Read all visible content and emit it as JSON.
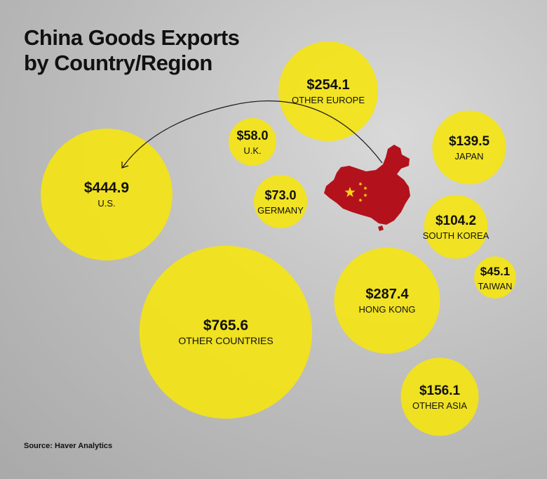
{
  "chart_data": {
    "type": "bubble",
    "title": [
      "China Goods Exports",
      "by Country/Region"
    ],
    "source": "Source: Haver Analytics",
    "bubble_color": "#f5e411",
    "map_color": "#b3121c",
    "star_color": "#f7d417",
    "bubbles": [
      {
        "label": "OTHER COUNTRIES",
        "value_label": "$765.6",
        "value": 765.6
      },
      {
        "label": "U.S.",
        "value_label": "$444.9",
        "value": 444.9
      },
      {
        "label": "HONG KONG",
        "value_label": "$287.4",
        "value": 287.4
      },
      {
        "label": "OTHER EUROPE",
        "value_label": "$254.1",
        "value": 254.1
      },
      {
        "label": "OTHER ASIA",
        "value_label": "$156.1",
        "value": 156.1
      },
      {
        "label": "JAPAN",
        "value_label": "$139.5",
        "value": 139.5
      },
      {
        "label": "SOUTH KOREA",
        "value_label": "$104.2",
        "value": 104.2
      },
      {
        "label": "GERMANY",
        "value_label": "$73.0",
        "value": 73.0
      },
      {
        "label": "U.K.",
        "value_label": "$58.0",
        "value": 58.0
      },
      {
        "label": "TAIWAN",
        "value_label": "$45.1",
        "value": 45.1
      }
    ]
  }
}
